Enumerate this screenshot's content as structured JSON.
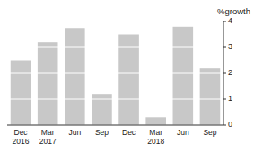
{
  "chart_data": {
    "type": "bar",
    "categories": [
      "Dec\n2016",
      "Mar\n2017",
      "Jun",
      "Sep",
      "Dec",
      "Mar\n2018",
      "Jun",
      "Sep"
    ],
    "values": [
      2.5,
      3.2,
      3.75,
      1.2,
      3.5,
      0.3,
      3.8,
      2.2
    ],
    "color": "#c8c8c8",
    "y_label": "%growth",
    "ylim": [
      0,
      4
    ],
    "yticks": [
      0,
      1,
      2,
      3,
      4
    ],
    "grid": true
  }
}
